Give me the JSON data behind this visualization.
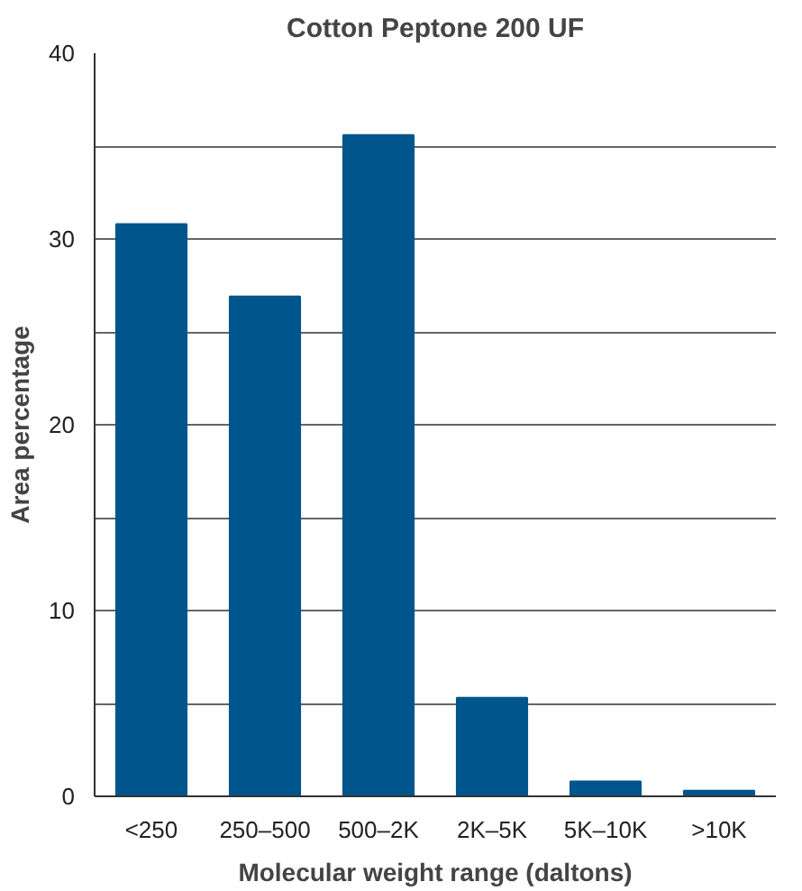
{
  "chart_data": {
    "type": "bar",
    "title": "Cotton Peptone 200 UF",
    "xlabel": "Molecular weight range (daltons)",
    "ylabel": "Area percentage",
    "categories": [
      "<250",
      "250–500",
      "500–2K",
      "2K–5K",
      "5K–10K",
      ">10K"
    ],
    "values": [
      30.8,
      26.9,
      35.6,
      5.3,
      0.8,
      0.3
    ],
    "color": "#00558c",
    "ylim": [
      0,
      40
    ],
    "yticks": [
      0,
      {
        "value": 5,
        "label": null
      },
      10,
      {
        "value": 15,
        "label": null
      },
      20,
      {
        "value": 25,
        "label": null
      },
      30,
      {
        "value": 35,
        "label": null
      },
      40
    ],
    "grid": "y"
  }
}
